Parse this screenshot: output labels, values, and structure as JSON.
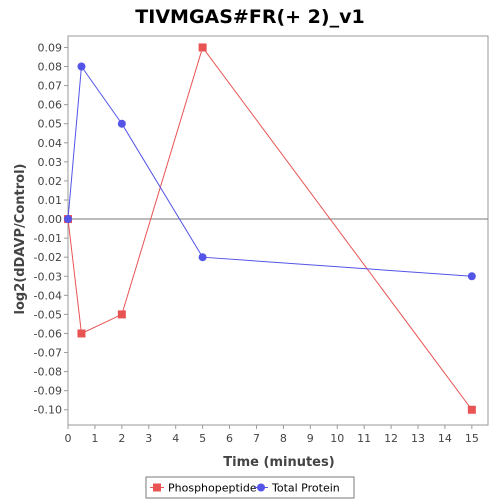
{
  "chart_data": {
    "type": "line",
    "title": "TIVMGAS#FR(+ 2)_v1",
    "xlabel": "Time (minutes)",
    "ylabel": "log2(dDAVP/Control)",
    "xlim": [
      0,
      15.6
    ],
    "ylim": [
      -0.108,
      0.096
    ],
    "x_ticks": [
      0,
      1,
      2,
      3,
      4,
      5,
      6,
      7,
      8,
      9,
      10,
      11,
      12,
      13,
      14,
      15
    ],
    "y_ticks": [
      0.09,
      0.08,
      0.07,
      0.06,
      0.05,
      0.04,
      0.03,
      0.02,
      0.01,
      0.0,
      -0.01,
      -0.02,
      -0.03,
      -0.04,
      -0.05,
      -0.06,
      -0.07,
      -0.08,
      -0.09,
      -0.1
    ],
    "y_tick_labels": [
      "0.09",
      "0.08",
      "0.07",
      "0.06",
      "0.05",
      "0.04",
      "0.03",
      "0.02",
      "0.01",
      "0.00",
      "-0.01",
      "-0.02",
      "-0.03",
      "-0.04",
      "-0.05",
      "-0.06",
      "-0.07",
      "-0.08",
      "-0.09",
      "-0.10"
    ],
    "grid": false,
    "zero_line": true,
    "legend_position": "bottom",
    "series": [
      {
        "name": "Phosphopeptide",
        "color": "#e85454",
        "marker": "square",
        "x": [
          0,
          0.5,
          2,
          5,
          15
        ],
        "y": [
          0.0,
          -0.06,
          -0.05,
          0.09,
          -0.1
        ]
      },
      {
        "name": "Total Protein",
        "color": "#5454e8",
        "marker": "circle",
        "x": [
          0,
          0.5,
          2,
          5,
          15
        ],
        "y": [
          0.0,
          0.08,
          0.05,
          -0.02,
          -0.03
        ]
      }
    ]
  }
}
